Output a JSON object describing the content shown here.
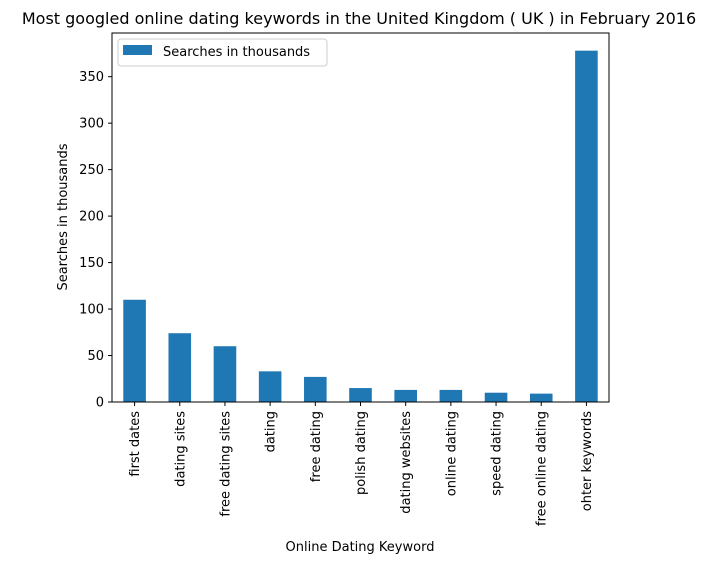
{
  "chart_data": {
    "type": "bar",
    "title": "Most googled online dating keywords in the United Kingdom ( UK ) in February 2016",
    "xlabel": "Online Dating Keyword",
    "ylabel": "Searches in thousands",
    "categories": [
      "first dates",
      "dating sites",
      "free dating sites",
      "dating",
      "free dating",
      "polish dating",
      "dating websites",
      "online dating",
      "speed dating",
      "free online dating",
      "ohter keywords"
    ],
    "series": [
      {
        "name": "Searches in thousands",
        "values": [
          110,
          74,
          60,
          33,
          27,
          15,
          13,
          13,
          10,
          9,
          378
        ],
        "color": "#1f77b4"
      }
    ],
    "ylim": [
      0,
      397
    ],
    "yticks": [
      0,
      50,
      100,
      150,
      200,
      250,
      300,
      350
    ],
    "legend_position": "top-left",
    "grid": false
  }
}
